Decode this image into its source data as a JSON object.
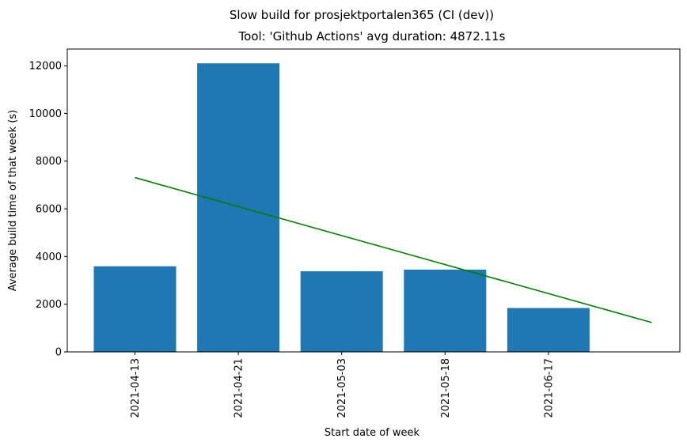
{
  "chart_data": {
    "type": "bar",
    "suptitle": "Slow build for prosjektportalen365 (CI (dev))",
    "title": "Tool: 'Github Actions' avg duration: 4872.11s",
    "xlabel": "Start date of week",
    "ylabel": "Average build time of that week (s)",
    "categories": [
      "2021-04-13",
      "2021-04-21",
      "2021-05-03",
      "2021-05-18",
      "2021-06-17"
    ],
    "values": [
      3590,
      12100,
      3380,
      3450,
      1840
    ],
    "ylim": [
      0,
      12700
    ],
    "yticks": [
      0,
      2000,
      4000,
      6000,
      8000,
      10000,
      12000
    ],
    "bar_color": "#1f77b4",
    "trendline": {
      "color": "#008000",
      "start": 7310,
      "end": 1230
    },
    "grid": false
  }
}
